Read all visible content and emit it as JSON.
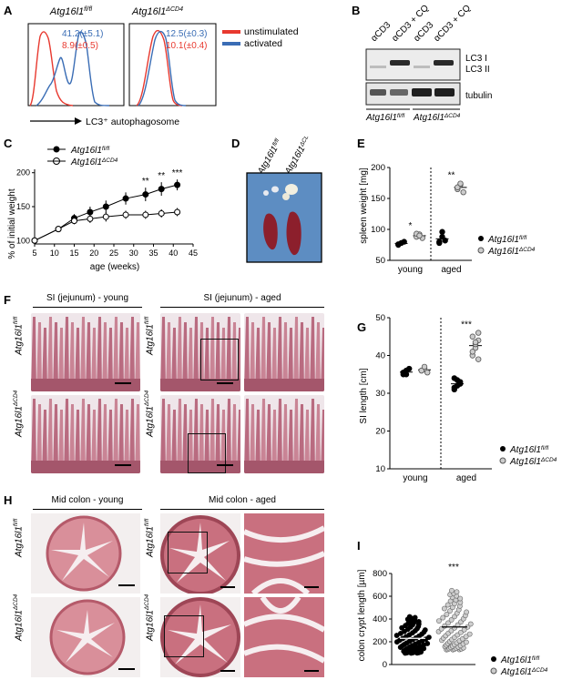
{
  "panels": {
    "A": "A",
    "B": "B",
    "C": "C",
    "D": "D",
    "E": "E",
    "F": "F",
    "G": "G",
    "H": "H",
    "I": "I"
  },
  "genotypes": {
    "ctrl": "Atg16l1",
    "ctrl_sup": "fl/fl",
    "ko": "Atg16l1",
    "ko_sup": "ΔCD4"
  },
  "panel_a": {
    "legend": [
      "unstimulated",
      "activated"
    ],
    "ctrl_blue_value": "41.2(±5.1)",
    "ctrl_red_value": "8.9(±0.5)",
    "ko_blue_value": "12.5(±0.3)",
    "ko_red_value": "10.1(±0.4)",
    "xlabel": "LC3⁺ autophagosome",
    "colors": {
      "unstimulated": "#e8392f",
      "activated": "#3a6db5"
    }
  },
  "panel_b": {
    "lanes": [
      "αCD3",
      "αCD3 + CQ",
      "αCD3",
      "αCD3 + CQ"
    ],
    "band1": "LC3 I",
    "band2": "LC3 II",
    "band3": "tubulin"
  },
  "panel_f": {
    "young_title": "SI (jejunum) - young",
    "aged_title": "SI (jejunum) - aged"
  },
  "panel_h": {
    "young_title": "Mid colon - young",
    "aged_title": "Mid colon - aged"
  },
  "chart_data": [
    {
      "id": "C",
      "type": "line",
      "xlabel": "age (weeks)",
      "ylabel": "% of initial weight",
      "xticks": [
        5,
        10,
        15,
        20,
        25,
        30,
        35,
        40,
        45
      ],
      "yticks": [
        100,
        150,
        200
      ],
      "xlim": [
        5,
        45
      ],
      "ylim": [
        95,
        205
      ],
      "annotations": [
        {
          "x": 33,
          "text": "**"
        },
        {
          "x": 37,
          "text": "**"
        },
        {
          "x": 41,
          "text": "***"
        }
      ],
      "series": [
        {
          "name": "Atg16l1 fl/fl",
          "x": [
            5,
            11,
            15,
            19,
            23,
            28,
            33,
            37,
            41
          ],
          "y": [
            100,
            117,
            133,
            142,
            150,
            162,
            168,
            176,
            182
          ],
          "err": [
            0,
            3,
            6,
            8,
            9,
            9,
            10,
            10,
            8
          ]
        },
        {
          "name": "Atg16l1 ΔCD4",
          "x": [
            5,
            11,
            15,
            19,
            23,
            28,
            33,
            37,
            41
          ],
          "y": [
            100,
            117,
            129,
            132,
            135,
            138,
            138,
            140,
            142
          ],
          "err": [
            0,
            3,
            5,
            6,
            7,
            6,
            6,
            6,
            6
          ]
        }
      ]
    },
    {
      "id": "E",
      "type": "scatter",
      "ylabel": "spleen weight [mg]",
      "categories": [
        "young",
        "aged"
      ],
      "yticks": [
        50,
        100,
        150,
        200
      ],
      "ylim": [
        50,
        200
      ],
      "annotations": [
        {
          "group": "young",
          "text": "*"
        },
        {
          "group": "aged",
          "text": "**"
        }
      ],
      "series": [
        {
          "name": "Atg16l1 fl/fl",
          "young": [
            75,
            78,
            80,
            76
          ],
          "aged": [
            80,
            88,
            82,
            78,
            96
          ]
        },
        {
          "name": "Atg16l1 ΔCD4",
          "young": [
            88,
            92,
            86,
            93,
            90
          ],
          "aged": [
            165,
            172,
            160,
            168,
            174
          ]
        }
      ]
    },
    {
      "id": "G",
      "type": "scatter",
      "ylabel": "SI length [cm]",
      "categories": [
        "young",
        "aged"
      ],
      "yticks": [
        10,
        20,
        30,
        40,
        50
      ],
      "ylim": [
        10,
        50
      ],
      "annotations": [
        {
          "group": "aged",
          "text": "***"
        }
      ],
      "series": [
        {
          "name": "Atg16l1 fl/fl",
          "young": [
            35,
            36,
            36.5,
            35.5,
            35
          ],
          "aged": [
            31,
            32,
            33,
            34,
            33.5,
            32.5,
            31.5
          ]
        },
        {
          "name": "Atg16l1 ΔCD4",
          "young": [
            36,
            36.5,
            35.5,
            36,
            37
          ],
          "aged": [
            40,
            42,
            44,
            45,
            43,
            46,
            41,
            43.5,
            39
          ]
        }
      ]
    },
    {
      "id": "I",
      "type": "scatter",
      "ylabel": "colon crypt length [µm]",
      "yticks": [
        0,
        200,
        400,
        600,
        800
      ],
      "ylim": [
        0,
        800
      ],
      "annotations": [
        {
          "text": "***"
        }
      ],
      "series": [
        {
          "name": "Atg16l1 fl/fl",
          "mean": 230,
          "min": 100,
          "max": 420
        },
        {
          "name": "Atg16l1 ΔCD4",
          "mean": 330,
          "min": 130,
          "max": 650
        }
      ]
    }
  ]
}
